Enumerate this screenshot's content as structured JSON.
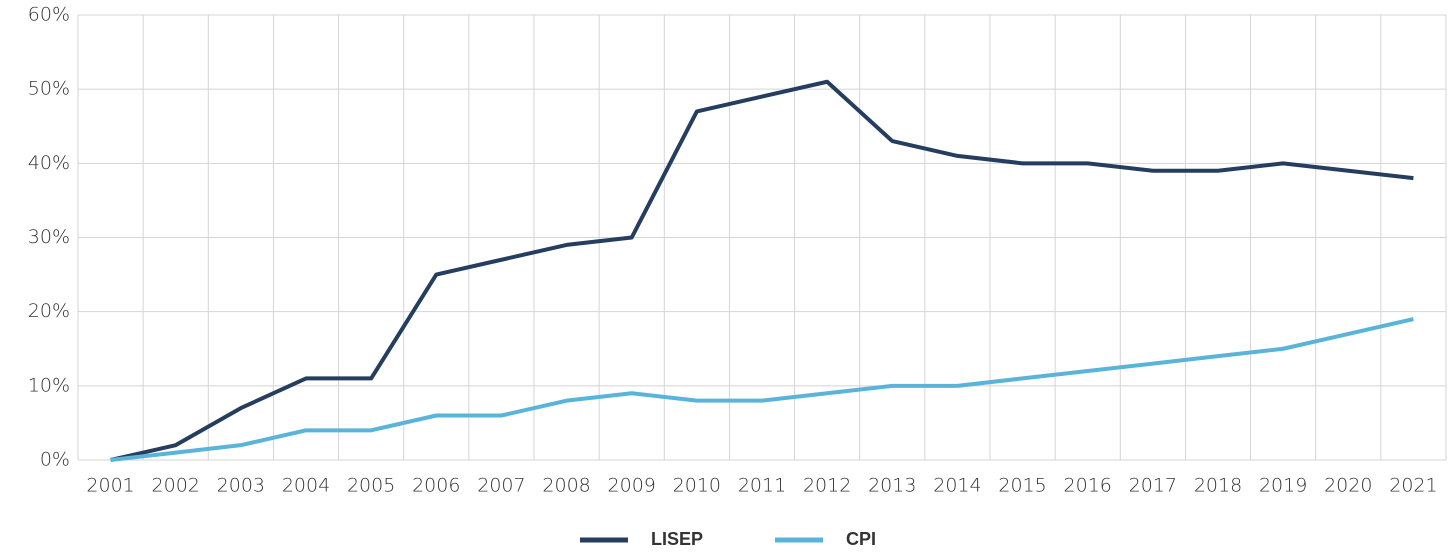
{
  "chart_data": {
    "type": "line",
    "categories": [
      "2001",
      "2002",
      "2003",
      "2004",
      "2005",
      "2006",
      "2007",
      "2008",
      "2009",
      "2010",
      "2011",
      "2012",
      "2013",
      "2014",
      "2015",
      "2016",
      "2017",
      "2018",
      "2019",
      "2020",
      "2021"
    ],
    "series": [
      {
        "name": "LISEP",
        "color": "#253d5f",
        "values": [
          0,
          2,
          7,
          11,
          11,
          25,
          27,
          29,
          30,
          47,
          49,
          51,
          43,
          41,
          40,
          40,
          39,
          39,
          40,
          39,
          38
        ]
      },
      {
        "name": "CPI",
        "color": "#5ab4d9",
        "values": [
          0,
          1,
          2,
          4,
          4,
          6,
          6,
          8,
          9,
          8,
          8,
          9,
          10,
          10,
          11,
          12,
          13,
          14,
          15,
          17,
          19
        ]
      }
    ],
    "ylim": [
      0,
      60
    ],
    "yticks": [
      {
        "value": 0,
        "label": "0%"
      },
      {
        "value": 10,
        "label": "10%"
      },
      {
        "value": 20,
        "label": "20%"
      },
      {
        "value": 30,
        "label": "30%"
      },
      {
        "value": 40,
        "label": "40%"
      },
      {
        "value": 50,
        "label": "50%"
      },
      {
        "value": 60,
        "label": "60%"
      }
    ],
    "grid": true,
    "legend": "bottom"
  }
}
